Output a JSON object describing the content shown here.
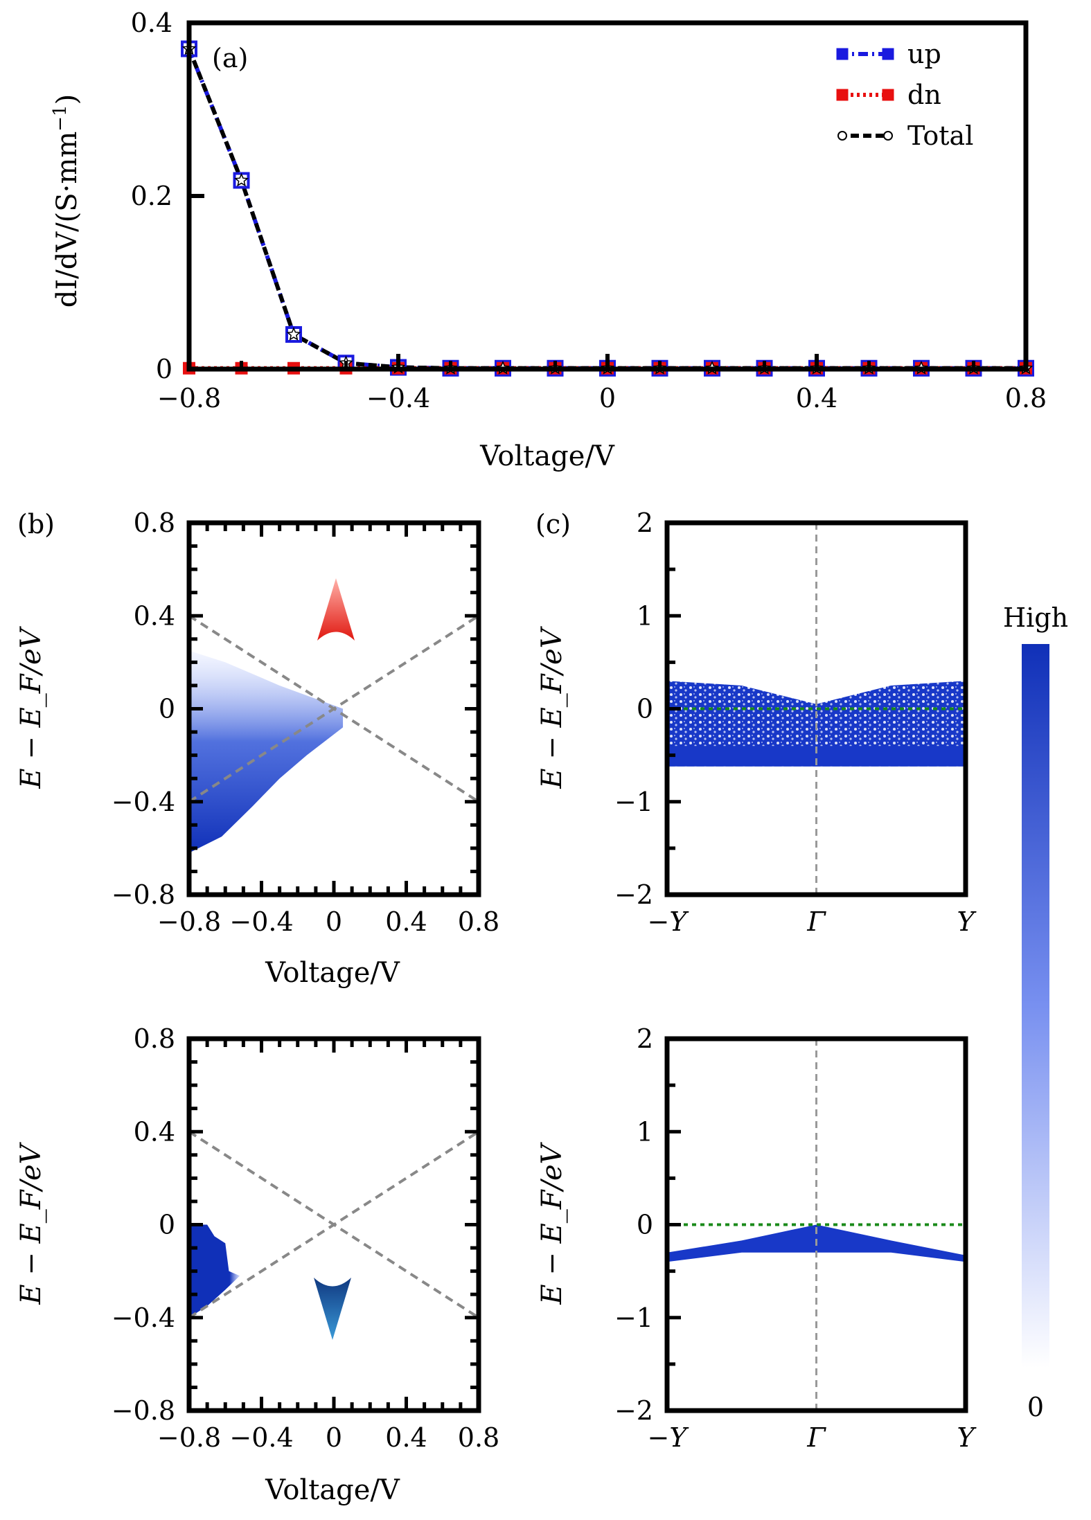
{
  "figure": {
    "panel_a": {
      "label": "(a)",
      "xlabel": "Voltage/V",
      "ylabel": "dI/dV/(S·mm",
      "ylabel_sup": "−1",
      "ylabel_close": ")",
      "xticks": [
        "−0.8",
        "−0.4",
        "0",
        "0.4",
        "0.8"
      ],
      "yticks": [
        "0",
        "0.2",
        "0.4"
      ],
      "legend": [
        "up",
        "dn",
        "Total"
      ]
    },
    "panel_b": {
      "label": "(b)",
      "xlabel": "Voltage/V",
      "ylabel": "E − E_F/eV",
      "xticks": [
        "−0.8",
        "−0.4",
        "0",
        "0.4",
        "0.8"
      ],
      "yticks": [
        "−0.8",
        "−0.4",
        "0",
        "0.4",
        "0.8"
      ]
    },
    "panel_c": {
      "label": "(c)",
      "ylabel": "E − E_F/eV",
      "xticks": [
        "−Y",
        "Γ",
        "Y"
      ],
      "yticks": [
        "−2",
        "−1",
        "0",
        "1",
        "2"
      ]
    },
    "colorbar": {
      "high_label": "High",
      "low_label": "0",
      "color_high": "#1030b8",
      "color_low": "#ffffff"
    }
  },
  "chart_data": [
    {
      "type": "line",
      "panel": "a",
      "xlabel": "Voltage/V",
      "ylabel": "dI/dV/(S·mm−1)",
      "xlim": [
        -0.8,
        0.8
      ],
      "ylim": [
        0,
        0.4
      ],
      "legend_position": "top-right",
      "series": [
        {
          "name": "up",
          "color": "#1a1adf",
          "style": "dash-dot",
          "marker": "square",
          "x": [
            -0.8,
            -0.7,
            -0.6,
            -0.5,
            -0.4,
            -0.3,
            -0.2,
            -0.1,
            0,
            0.1,
            0.2,
            0.3,
            0.4,
            0.5,
            0.6,
            0.7,
            0.8
          ],
          "y": [
            0.37,
            0.218,
            0.04,
            0.007,
            0.002,
            0.001,
            0.001,
            0.001,
            0.001,
            0.001,
            0.001,
            0.001,
            0.001,
            0.001,
            0.001,
            0.001,
            0.001
          ]
        },
        {
          "name": "dn",
          "color": "#e81010",
          "style": "dotted",
          "marker": "square",
          "x": [
            -0.8,
            -0.7,
            -0.6,
            -0.5,
            -0.4,
            -0.3,
            -0.2,
            -0.1,
            0,
            0.1,
            0.2,
            0.3,
            0.4,
            0.5,
            0.6,
            0.7,
            0.8
          ],
          "y": [
            0.001,
            0.001,
            0.001,
            0.001,
            0.001,
            0.001,
            0.001,
            0.001,
            0.001,
            0.001,
            0.001,
            0.001,
            0.001,
            0.001,
            0.001,
            0.001,
            0.001
          ]
        },
        {
          "name": "Total",
          "color": "#000000",
          "style": "dashed",
          "marker": "star",
          "x": [
            -0.8,
            -0.7,
            -0.6,
            -0.5,
            -0.4,
            -0.3,
            -0.2,
            -0.1,
            0,
            0.1,
            0.2,
            0.3,
            0.4,
            0.5,
            0.6,
            0.7,
            0.8
          ],
          "y": [
            0.37,
            0.218,
            0.04,
            0.007,
            0.002,
            0.001,
            0.001,
            0.001,
            0.001,
            0.001,
            0.001,
            0.001,
            0.001,
            0.001,
            0.001,
            0.001,
            0.001
          ]
        }
      ]
    },
    {
      "type": "heatmap",
      "panel": "b-up",
      "xlabel": "Voltage/V",
      "ylabel": "E − EF/eV",
      "xlim": [
        -0.8,
        0.8
      ],
      "ylim": [
        -0.8,
        0.8
      ],
      "bias_window_lines": [
        {
          "x": [
            -0.8,
            0.8
          ],
          "y": [
            0.4,
            -0.4
          ]
        },
        {
          "x": [
            -0.8,
            0.8
          ],
          "y": [
            -0.4,
            0.4
          ]
        }
      ],
      "region": {
        "vertices": [
          [
            -0.8,
            0.25
          ],
          [
            -0.8,
            -0.62
          ],
          [
            -0.62,
            -0.55
          ],
          [
            -0.45,
            -0.42
          ],
          [
            -0.3,
            -0.3
          ],
          [
            -0.15,
            -0.2
          ],
          [
            0.05,
            -0.08
          ],
          [
            0.05,
            0.0
          ],
          [
            -0.3,
            0.1
          ],
          [
            -0.6,
            0.2
          ]
        ],
        "intensity": "high near lower-left, fading upward"
      },
      "arrow": "spin-up"
    },
    {
      "type": "heatmap",
      "panel": "b-down",
      "xlabel": "Voltage/V",
      "ylabel": "E − EF/eV",
      "xlim": [
        -0.8,
        0.8
      ],
      "ylim": [
        -0.8,
        0.8
      ],
      "bias_window_lines": [
        {
          "x": [
            -0.8,
            0.8
          ],
          "y": [
            0.4,
            -0.4
          ]
        },
        {
          "x": [
            -0.8,
            0.8
          ],
          "y": [
            -0.4,
            0.4
          ]
        }
      ],
      "region": {
        "vertices": [
          [
            -0.8,
            0.0
          ],
          [
            -0.7,
            0.0
          ],
          [
            -0.66,
            -0.05
          ],
          [
            -0.6,
            -0.08
          ],
          [
            -0.58,
            -0.2
          ],
          [
            -0.52,
            -0.22
          ],
          [
            -0.6,
            -0.28
          ],
          [
            -0.7,
            -0.35
          ],
          [
            -0.8,
            -0.4
          ]
        ],
        "intensity": "high"
      },
      "arrow": "spin-down"
    },
    {
      "type": "heatmap",
      "panel": "c-up",
      "ylabel": "E − EF/eV",
      "xticks": [
        "−Y",
        "Γ",
        "Y"
      ],
      "ylim": [
        -2,
        2
      ],
      "fermi_level": 0,
      "band_region": {
        "upper_edge": [
          [
            -1.0,
            0.3
          ],
          [
            -0.5,
            0.25
          ],
          [
            0,
            0.05
          ],
          [
            0.5,
            0.25
          ],
          [
            1.0,
            0.3
          ]
        ],
        "lower_edge": -0.62
      }
    },
    {
      "type": "heatmap",
      "panel": "c-down",
      "ylabel": "E − EF/eV",
      "xticks": [
        "−Y",
        "Γ",
        "Y"
      ],
      "ylim": [
        -2,
        2
      ],
      "fermi_level": 0,
      "band_region": {
        "upper_edge": [
          [
            -1.0,
            -0.3
          ],
          [
            -0.5,
            -0.17
          ],
          [
            0,
            0.0
          ],
          [
            0.5,
            -0.17
          ],
          [
            1.0,
            -0.33
          ]
        ],
        "lower_edge": [
          [
            -1.0,
            -0.4
          ],
          [
            -0.5,
            -0.3
          ],
          [
            0,
            -0.3
          ],
          [
            0.5,
            -0.3
          ],
          [
            1.0,
            -0.4
          ]
        ]
      }
    }
  ]
}
